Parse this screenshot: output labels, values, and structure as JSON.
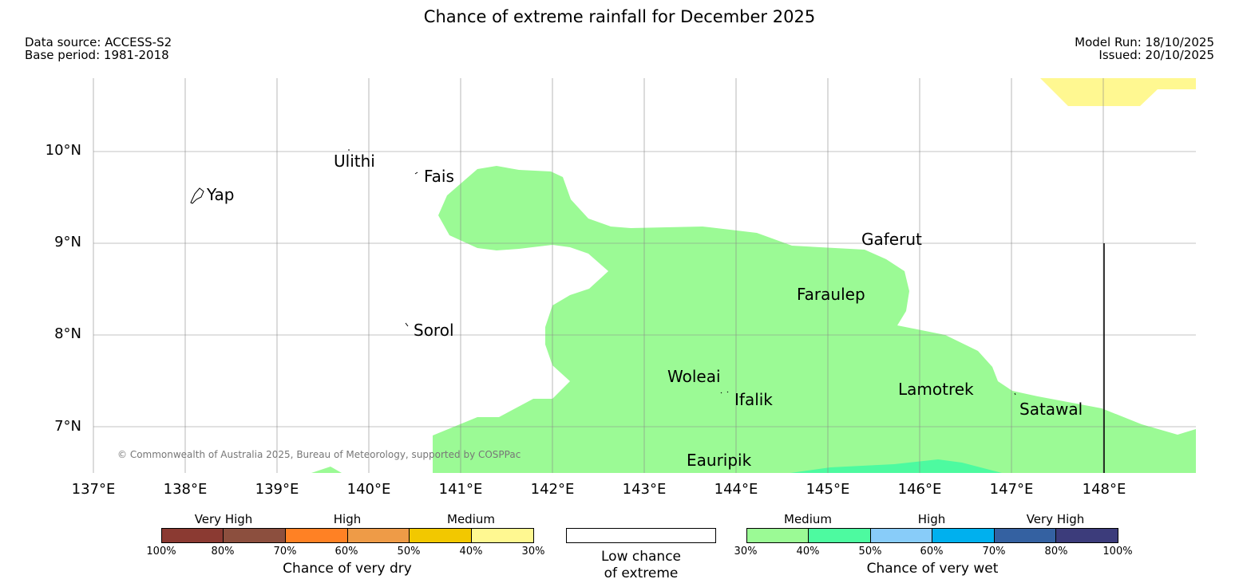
{
  "title": "Chance of extreme rainfall for December 2025",
  "meta": {
    "data_source": "Data source: ACCESS-S2",
    "base_period": "Base period: 1981-2018",
    "model_run": "Model Run: 18/10/2025",
    "issued": "Issued: 20/10/2025"
  },
  "axes": {
    "lat_labels": [
      "10°N",
      "9°N",
      "8°N",
      "7°N"
    ],
    "lon_labels": [
      "137°E",
      "138°E",
      "139°E",
      "140°E",
      "141°E",
      "142°E",
      "143°E",
      "144°E",
      "145°E",
      "146°E",
      "147°E",
      "148°E"
    ]
  },
  "places": [
    "Ulithi",
    "Fais",
    "Yap",
    "Gaferut",
    "Faraulep",
    "Sorol",
    "Woleai",
    "Ifalik",
    "Lamotrek",
    "Satawal",
    "Eauripik"
  ],
  "copyright": "© Commonwealth of Australia 2025, Bureau of Meteorology, supported by COSPPac",
  "colors": {
    "wet_medium": "#9bfa95",
    "wet_medium_high": "#4dfaa0",
    "dry_light": "#fff891"
  },
  "legend": {
    "dry": {
      "title": "Chance of very dry",
      "categories": [
        "Very High",
        "High",
        "Medium"
      ],
      "ticks": [
        "100%",
        "80%",
        "70%",
        "60%",
        "50%",
        "40%",
        "30%"
      ],
      "colors": [
        "#8b3a32",
        "#8c4f3e",
        "#ff8124",
        "#ee9b47",
        "#f2c800",
        "#fff891"
      ]
    },
    "neutral": {
      "line1": "Low chance",
      "line2": "of extreme"
    },
    "wet": {
      "title": "Chance of very wet",
      "categories": [
        "Medium",
        "High",
        "Very High"
      ],
      "ticks": [
        "30%",
        "40%",
        "50%",
        "60%",
        "70%",
        "80%",
        "100%"
      ],
      "colors": [
        "#9bfa95",
        "#4dfaa0",
        "#88ccf9",
        "#00b0ee",
        "#3461a1",
        "#3c3c7b"
      ]
    }
  }
}
